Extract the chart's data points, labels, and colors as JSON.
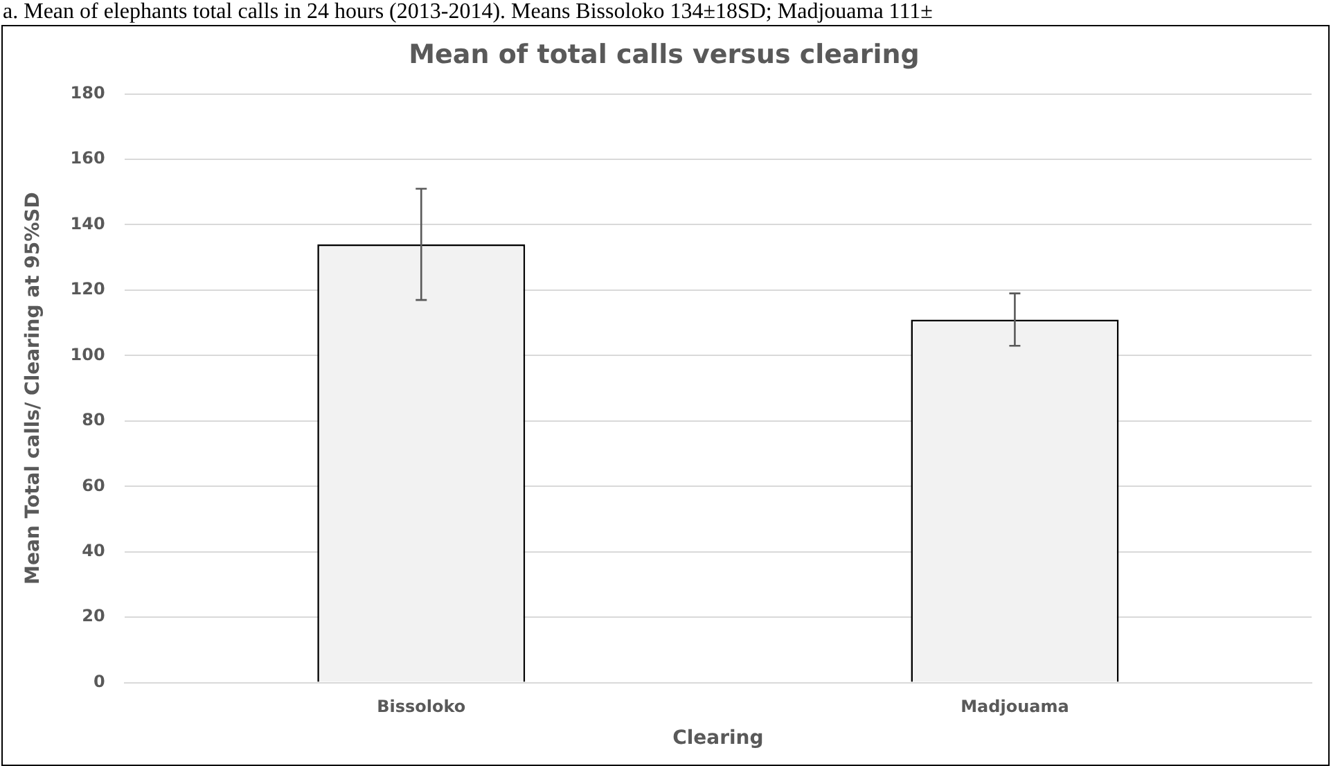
{
  "chart_data": {
    "type": "bar",
    "title": "Mean of total calls versus clearing",
    "annotations": [
      "a. Mean of elephants total calls in 24 hours (2013-2014). Means Bissoloko 134±18SD; Madjouama 111±"
    ],
    "xlabel": "Clearing",
    "ylabel": "Mean Total calls/ Clearing at 95%SD",
    "categories": [
      "Bissoloko",
      "Madjouama"
    ],
    "values": [
      134,
      111
    ],
    "errors": [
      17,
      8
    ],
    "color": "#f2f2f2",
    "ylim": [
      0,
      180
    ],
    "yticks": [
      0,
      20,
      40,
      60,
      80,
      100,
      120,
      140,
      160,
      180
    ],
    "grid": "y"
  }
}
